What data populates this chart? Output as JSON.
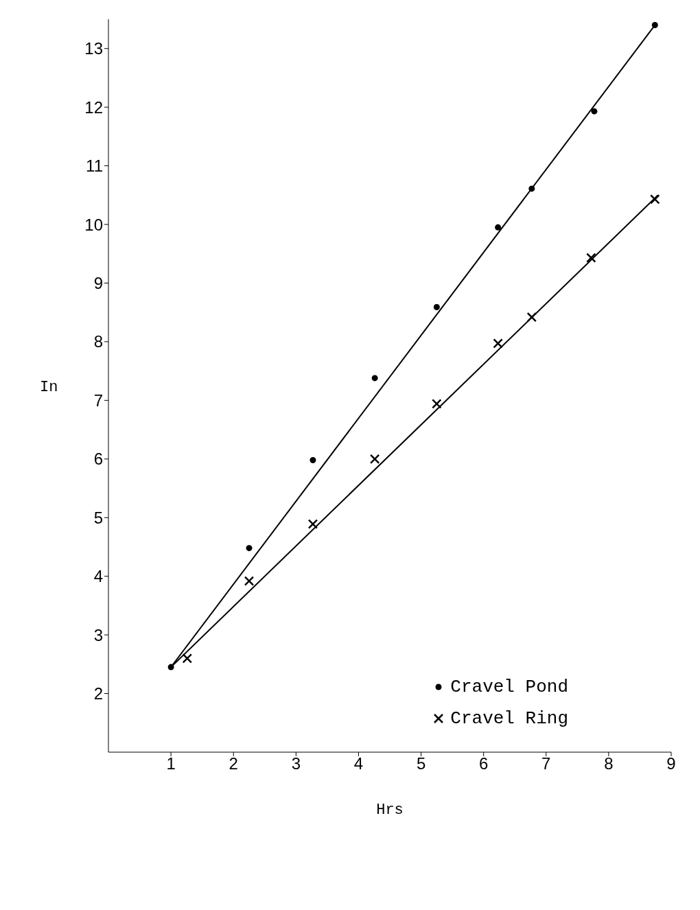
{
  "chart_data": {
    "type": "scatter",
    "xlabel": "Hrs",
    "ylabel": "In",
    "xlim": [
      0,
      9
    ],
    "ylim": [
      1,
      13.5
    ],
    "xticks": [
      1,
      2,
      3,
      4,
      5,
      6,
      7,
      8,
      9
    ],
    "yticks": [
      2,
      3,
      4,
      5,
      6,
      7,
      8,
      9,
      10,
      11,
      12,
      13
    ],
    "legend": "bottom right",
    "series": [
      {
        "name": "Cravel Pond",
        "color": "#000000",
        "marker": "circle",
        "x": [
          1.0,
          2.25,
          3.27,
          4.26,
          5.25,
          6.23,
          6.77,
          7.77,
          8.74
        ],
        "values": [
          2.45,
          4.48,
          5.98,
          7.38,
          8.59,
          9.95,
          10.61,
          11.93,
          13.4
        ]
      },
      {
        "name": "Cravel Ring",
        "color": "#000000",
        "marker": "cross",
        "x": [
          1.26,
          2.25,
          3.27,
          4.26,
          5.25,
          6.23,
          6.77,
          7.72,
          8.74
        ],
        "values": [
          2.6,
          3.92,
          4.89,
          6.0,
          6.94,
          7.97,
          8.42,
          9.43,
          10.43
        ]
      },
      {
        "type": "line",
        "color": "#000000",
        "marker": "none",
        "x": [
          1.0,
          8.74
        ],
        "values": [
          2.45,
          13.4
        ]
      },
      {
        "type": "line",
        "color": "#000000",
        "marker": "none",
        "x": [
          1.0,
          8.79
        ],
        "values": [
          2.45,
          10.5
        ]
      }
    ]
  }
}
